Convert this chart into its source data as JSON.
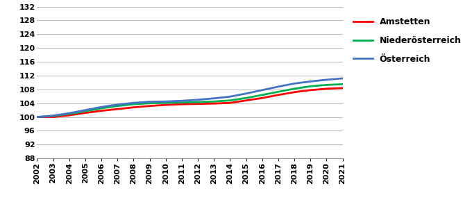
{
  "years": [
    2002,
    2003,
    2004,
    2005,
    2006,
    2007,
    2008,
    2009,
    2010,
    2011,
    2012,
    2013,
    2014,
    2015,
    2016,
    2017,
    2018,
    2019,
    2020,
    2021
  ],
  "amstetten": [
    100.0,
    100.0,
    100.5,
    101.2,
    101.8,
    102.3,
    102.8,
    103.2,
    103.5,
    103.7,
    103.8,
    103.9,
    104.1,
    104.8,
    105.5,
    106.4,
    107.2,
    107.8,
    108.2,
    108.4
  ],
  "niederoesterreich": [
    100.0,
    100.3,
    100.9,
    101.7,
    102.5,
    103.2,
    103.7,
    104.0,
    104.1,
    104.2,
    104.3,
    104.5,
    104.8,
    105.5,
    106.4,
    107.3,
    108.2,
    108.9,
    109.3,
    109.5
  ],
  "oesterreich": [
    100.0,
    100.4,
    101.1,
    102.0,
    102.9,
    103.6,
    104.1,
    104.4,
    104.5,
    104.7,
    105.0,
    105.4,
    105.9,
    106.8,
    107.8,
    108.8,
    109.7,
    110.3,
    110.8,
    111.2
  ],
  "amstetten_color": "#ff0000",
  "niederoesterreich_color": "#00b050",
  "oesterreich_color": "#4472c4",
  "ylim": [
    88,
    132
  ],
  "yticks": [
    88,
    92,
    96,
    100,
    104,
    108,
    112,
    116,
    120,
    124,
    128,
    132
  ],
  "legend_labels": [
    "Amstetten",
    "Niederösterreich",
    "Österreich"
  ],
  "linewidth": 2.0,
  "background_color": "#ffffff",
  "grid_color": "#bfbfbf",
  "tick_fontsize": 8,
  "legend_fontsize": 9
}
